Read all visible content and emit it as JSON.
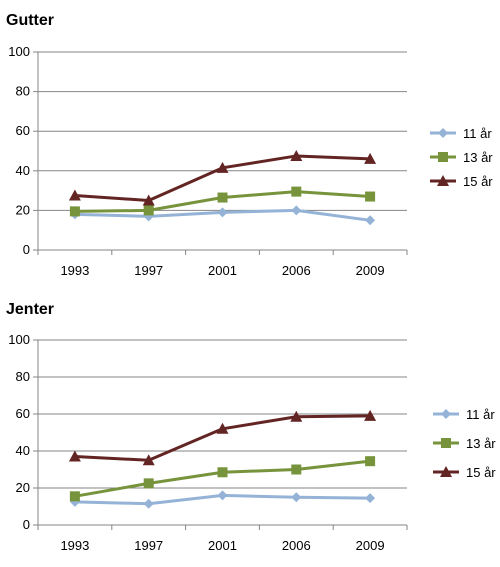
{
  "chart_data": [
    {
      "type": "line",
      "title": "Gutter",
      "x": [
        "1993",
        "1997",
        "2001",
        "2006",
        "2009"
      ],
      "ylim": [
        0,
        100
      ],
      "yticks": [
        "0",
        "20",
        "40",
        "60",
        "80",
        "100"
      ],
      "grid": true,
      "legend": "right",
      "series": [
        {
          "name": "11 år",
          "values": [
            18,
            17,
            19,
            20,
            15
          ],
          "color": "#95b3d7",
          "marker": "diamond"
        },
        {
          "name": "13 år",
          "values": [
            19.5,
            20,
            26.5,
            29.5,
            27
          ],
          "color": "#77933c",
          "marker": "square"
        },
        {
          "name": "15 år",
          "values": [
            27.5,
            25,
            41.5,
            47.5,
            46
          ],
          "color": "#632523",
          "marker": "triangle"
        }
      ]
    },
    {
      "type": "line",
      "title": "Jenter",
      "x": [
        "1993",
        "1997",
        "2001",
        "2006",
        "2009"
      ],
      "ylim": [
        0,
        100
      ],
      "yticks": [
        "0",
        "20",
        "40",
        "60",
        "80",
        "100"
      ],
      "grid": true,
      "legend": "right",
      "series": [
        {
          "name": "11 år",
          "values": [
            12.5,
            11.5,
            16,
            15,
            14.5
          ],
          "color": "#95b3d7",
          "marker": "diamond"
        },
        {
          "name": "13 år",
          "values": [
            15.5,
            22.5,
            28.5,
            30,
            34.5
          ],
          "color": "#77933c",
          "marker": "square"
        },
        {
          "name": "15 år",
          "values": [
            37,
            35,
            52,
            58.5,
            59
          ],
          "color": "#632523",
          "marker": "triangle"
        }
      ]
    }
  ]
}
